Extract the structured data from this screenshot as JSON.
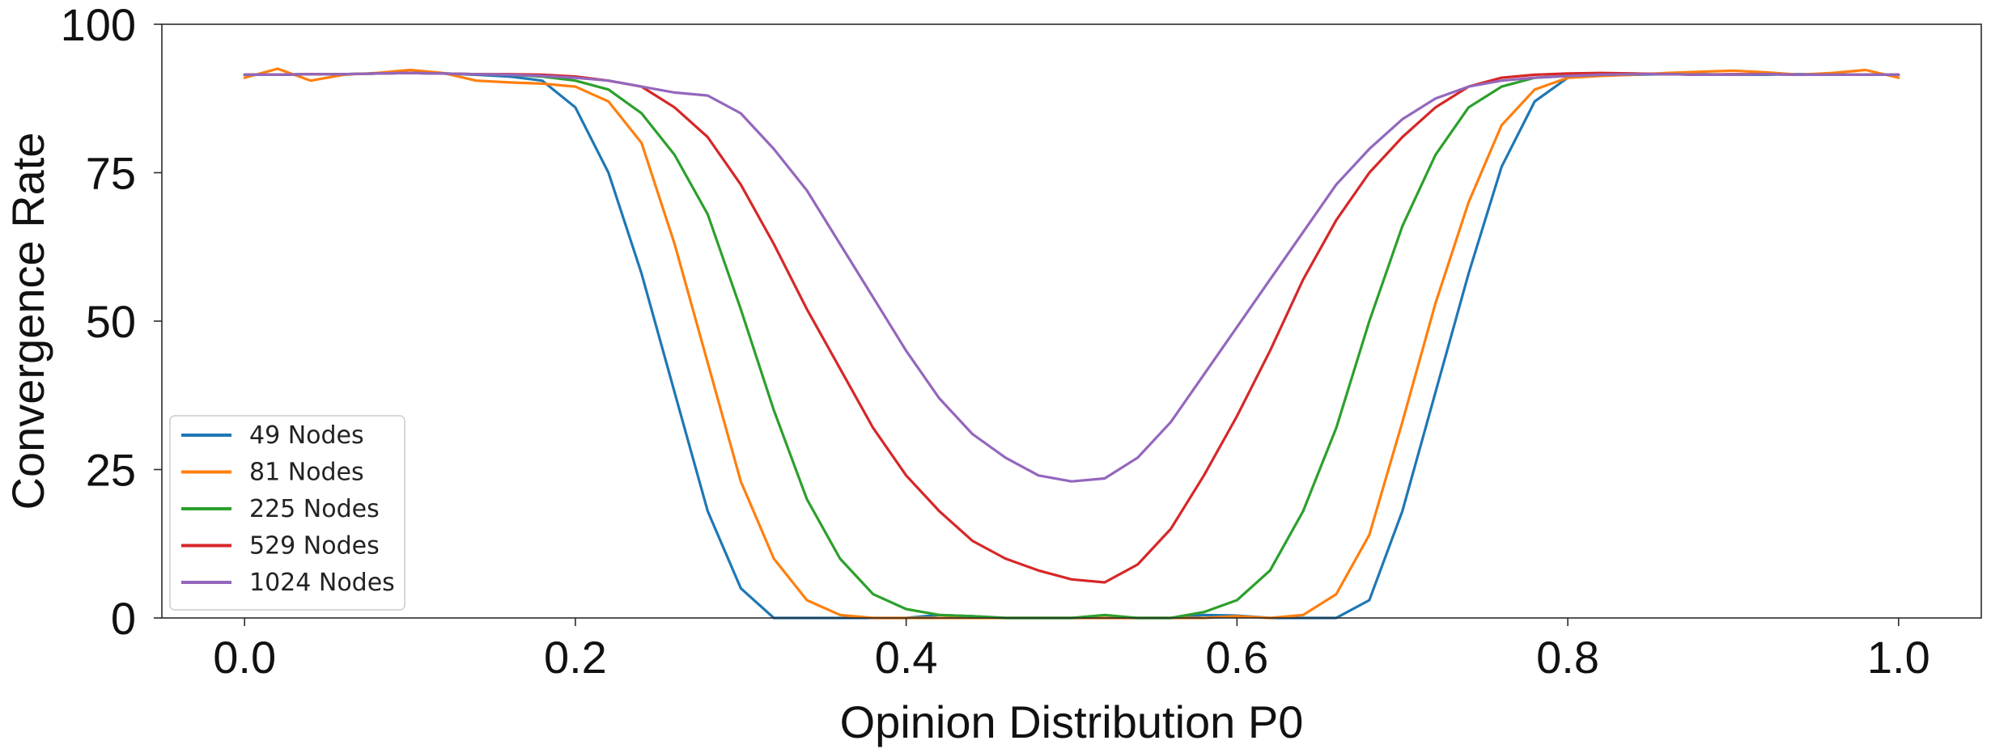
{
  "chart_data": {
    "type": "line",
    "title": "",
    "xlabel": "Opinion Distribution P0",
    "ylabel": "Convergence Rate",
    "xlim": [
      -0.05,
      1.05
    ],
    "ylim": [
      0,
      100
    ],
    "x_ticks": [
      0.0,
      0.2,
      0.4,
      0.6,
      0.8,
      1.0
    ],
    "x_tick_labels": [
      "0.0",
      "0.2",
      "0.4",
      "0.6",
      "0.8",
      "1.0"
    ],
    "y_ticks": [
      0,
      25,
      50,
      75,
      100
    ],
    "y_tick_labels": [
      "0",
      "25",
      "50",
      "75",
      "100"
    ],
    "grid": false,
    "legend_position": "bottom-left",
    "x": [
      0.0,
      0.02,
      0.04,
      0.06,
      0.08,
      0.1,
      0.12,
      0.14,
      0.16,
      0.18,
      0.2,
      0.22,
      0.24,
      0.26,
      0.28,
      0.3,
      0.32,
      0.34,
      0.36,
      0.38,
      0.4,
      0.42,
      0.44,
      0.46,
      0.48,
      0.5,
      0.52,
      0.54,
      0.56,
      0.58,
      0.6,
      0.62,
      0.64,
      0.66,
      0.68,
      0.7,
      0.72,
      0.74,
      0.76,
      0.78,
      0.8,
      0.82,
      0.84,
      0.86,
      0.88,
      0.9,
      0.92,
      0.94,
      0.96,
      0.98,
      1.0
    ],
    "series": [
      {
        "name": "49 Nodes",
        "color": "#1f77b4",
        "values": [
          91.5,
          91.5,
          91.6,
          91.6,
          91.7,
          91.8,
          91.7,
          91.5,
          91.2,
          90.5,
          86,
          75,
          58,
          38,
          18,
          5,
          0,
          0,
          0,
          0,
          0,
          0.5,
          0.3,
          0,
          0,
          0,
          0,
          0,
          0,
          0.5,
          0.4,
          0,
          0,
          0,
          3,
          18,
          38,
          58,
          76,
          87,
          91,
          91.4,
          91.5,
          91.6,
          91.6,
          91.5,
          91.5,
          91.6,
          91.5,
          91.5,
          91.5
        ]
      },
      {
        "name": "81 Nodes",
        "color": "#ff7f0e",
        "values": [
          91,
          92.5,
          90.5,
          91.5,
          91.8,
          92.3,
          91.8,
          90.5,
          90.2,
          90,
          89.5,
          87,
          80,
          63,
          43,
          23,
          10,
          3,
          0.5,
          0,
          0,
          0,
          0,
          0,
          0,
          0,
          0,
          0,
          0,
          0,
          0.3,
          0,
          0.5,
          4,
          14,
          33,
          53,
          70,
          83,
          89,
          91,
          91.3,
          91.5,
          91.8,
          92,
          92.2,
          91.9,
          91.5,
          91.8,
          92.3,
          91
        ]
      },
      {
        "name": "225 Nodes",
        "color": "#2ca02c",
        "values": [
          91.5,
          91.5,
          91.6,
          91.6,
          91.7,
          91.8,
          91.7,
          91.6,
          91.5,
          91.2,
          90.5,
          89,
          85,
          78,
          68,
          52,
          35,
          20,
          10,
          4,
          1.5,
          0.5,
          0.3,
          0,
          0,
          0,
          0.5,
          0,
          0,
          1,
          3,
          8,
          18,
          32,
          50,
          66,
          78,
          86,
          89.5,
          91,
          91.3,
          91.5,
          91.6,
          91.6,
          91.5,
          91.5,
          91.6,
          91.5,
          91.5,
          91.5,
          91.5
        ]
      },
      {
        "name": "529 Nodes",
        "color": "#d62728",
        "values": [
          91.5,
          91.5,
          91.6,
          91.6,
          91.7,
          91.8,
          91.7,
          91.6,
          91.6,
          91.5,
          91.2,
          90.5,
          89.5,
          86,
          81,
          73,
          63,
          52,
          42,
          32,
          24,
          18,
          13,
          10,
          8,
          6.5,
          6,
          9,
          15,
          24,
          34,
          45,
          57,
          67,
          75,
          81,
          86,
          89.5,
          91,
          91.5,
          91.7,
          91.8,
          91.7,
          91.6,
          91.5,
          91.6,
          91.6,
          91.5,
          91.5,
          91.5,
          91.5
        ]
      },
      {
        "name": "1024 Nodes",
        "color": "#9467bd",
        "values": [
          91.5,
          91.5,
          91.6,
          91.6,
          91.7,
          91.8,
          91.7,
          91.6,
          91.5,
          91.3,
          91,
          90.5,
          89.5,
          88.5,
          88,
          85,
          79,
          72,
          63,
          54,
          45,
          37,
          31,
          27,
          24,
          23,
          23.5,
          27,
          33,
          41,
          49,
          57,
          65,
          73,
          79,
          84,
          87.5,
          89.5,
          90.5,
          91,
          91.3,
          91.5,
          91.6,
          91.6,
          91.5,
          91.5,
          91.6,
          91.5,
          91.5,
          91.5,
          91.5
        ]
      }
    ]
  }
}
